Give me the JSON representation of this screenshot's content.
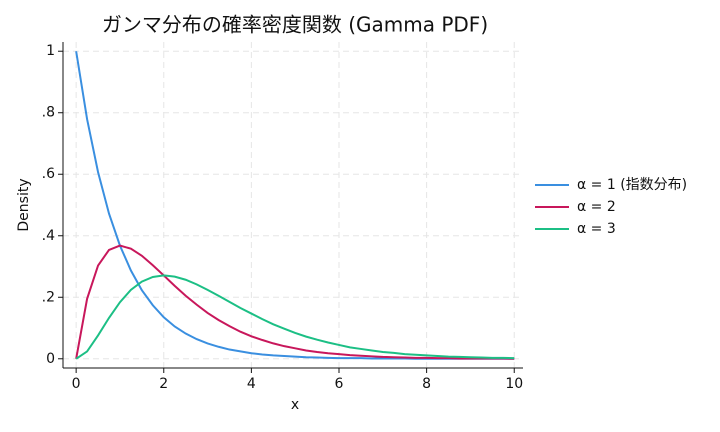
{
  "chart_data": {
    "type": "line",
    "title": "ガンマ分布の確率密度関数 (Gamma PDF)",
    "x_label": "x",
    "y_label": "Density",
    "x": [
      0,
      0.25,
      0.5,
      0.75,
      1,
      1.25,
      1.5,
      1.75,
      2,
      2.25,
      2.5,
      2.75,
      3,
      3.25,
      3.5,
      3.75,
      4,
      4.25,
      4.5,
      4.75,
      5,
      5.25,
      5.5,
      5.75,
      6,
      6.25,
      6.5,
      6.75,
      7,
      7.25,
      7.5,
      7.75,
      8,
      8.25,
      8.5,
      8.75,
      9,
      9.25,
      9.5,
      9.75,
      10
    ],
    "series": [
      {
        "name": "α = 1 (指数分布)",
        "color": "#3a8fe0",
        "values": [
          1,
          0.779,
          0.607,
          0.472,
          0.368,
          0.287,
          0.223,
          0.174,
          0.135,
          0.105,
          0.082,
          0.064,
          0.05,
          0.039,
          0.03,
          0.024,
          0.018,
          0.014,
          0.011,
          0.009,
          0.007,
          0.005,
          0.004,
          0.003,
          0.002,
          0.002,
          0.002,
          0.001,
          0.001,
          0.001,
          0.001,
          0,
          0,
          0,
          0,
          0,
          0,
          0,
          0,
          0,
          0
        ]
      },
      {
        "name": "α = 2",
        "color": "#c8175b",
        "values": [
          0,
          0.195,
          0.303,
          0.354,
          0.368,
          0.358,
          0.335,
          0.304,
          0.271,
          0.237,
          0.205,
          0.176,
          0.149,
          0.126,
          0.106,
          0.088,
          0.073,
          0.061,
          0.05,
          0.041,
          0.034,
          0.027,
          0.022,
          0.018,
          0.015,
          0.012,
          0.01,
          0.008,
          0.006,
          0.005,
          0.004,
          0.003,
          0.003,
          0.002,
          0.002,
          0.001,
          0.001,
          0.001,
          0.001,
          0.001,
          0
        ]
      },
      {
        "name": "α = 3",
        "color": "#1cbf85",
        "values": [
          0,
          0.024,
          0.076,
          0.133,
          0.184,
          0.224,
          0.251,
          0.266,
          0.271,
          0.267,
          0.257,
          0.242,
          0.224,
          0.205,
          0.185,
          0.165,
          0.147,
          0.129,
          0.112,
          0.098,
          0.084,
          0.072,
          0.062,
          0.053,
          0.045,
          0.037,
          0.032,
          0.027,
          0.022,
          0.019,
          0.015,
          0.013,
          0.011,
          0.009,
          0.007,
          0.006,
          0.005,
          0.004,
          0.003,
          0.003,
          0.002
        ]
      }
    ],
    "xlim": [
      -0.3,
      10.2
    ],
    "ylim": [
      -0.03,
      1.03
    ],
    "xticks": [
      0,
      2,
      4,
      6,
      8,
      10
    ],
    "yticks": [
      0,
      {
        "value": 0.2,
        "label": ".2"
      },
      {
        "value": 0.4,
        "label": ".4"
      },
      {
        "value": 0.6,
        "label": ".6"
      },
      {
        "value": 0.8,
        "label": ".8"
      },
      1
    ],
    "grid": true,
    "legend": "right"
  }
}
